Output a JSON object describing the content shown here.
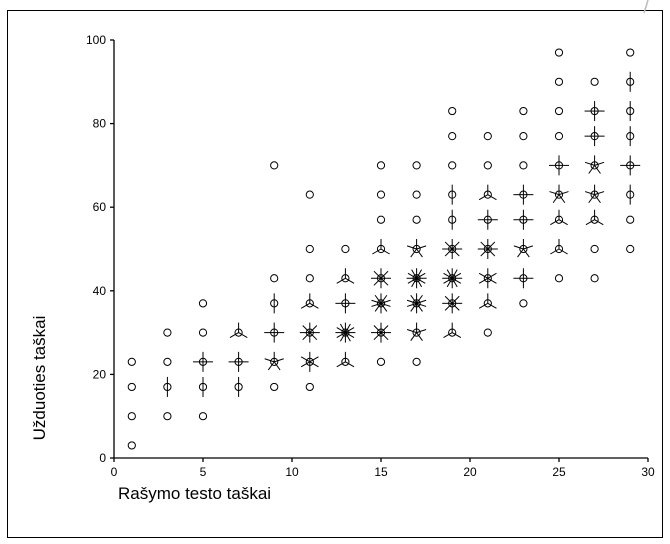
{
  "chart_data": {
    "type": "scatter",
    "title": "",
    "xlabel": "Rašymo testo taškai",
    "ylabel": "Užduoties taškai",
    "xlim": [
      0,
      30
    ],
    "ylim": [
      0,
      100
    ],
    "xticks": [
      0,
      5,
      10,
      15,
      20,
      25,
      30
    ],
    "yticks": [
      0,
      20,
      40,
      60,
      80,
      100
    ],
    "grid": false,
    "legend": "none",
    "marker": "sunflower",
    "color": "#000000",
    "points": [
      {
        "x": 1,
        "y": 3,
        "n": 1
      },
      {
        "x": 1,
        "y": 10,
        "n": 1
      },
      {
        "x": 1,
        "y": 17,
        "n": 1
      },
      {
        "x": 1,
        "y": 23,
        "n": 1
      },
      {
        "x": 3,
        "y": 10,
        "n": 1
      },
      {
        "x": 3,
        "y": 17,
        "n": 2
      },
      {
        "x": 3,
        "y": 23,
        "n": 1
      },
      {
        "x": 3,
        "y": 30,
        "n": 1
      },
      {
        "x": 5,
        "y": 10,
        "n": 1
      },
      {
        "x": 5,
        "y": 17,
        "n": 2
      },
      {
        "x": 5,
        "y": 23,
        "n": 4
      },
      {
        "x": 5,
        "y": 30,
        "n": 1
      },
      {
        "x": 5,
        "y": 37,
        "n": 1
      },
      {
        "x": 7,
        "y": 17,
        "n": 2
      },
      {
        "x": 7,
        "y": 23,
        "n": 4
      },
      {
        "x": 7,
        "y": 30,
        "n": 3
      },
      {
        "x": 9,
        "y": 17,
        "n": 1
      },
      {
        "x": 9,
        "y": 23,
        "n": 5
      },
      {
        "x": 9,
        "y": 30,
        "n": 4
      },
      {
        "x": 9,
        "y": 37,
        "n": 2
      },
      {
        "x": 9,
        "y": 43,
        "n": 1
      },
      {
        "x": 9,
        "y": 70,
        "n": 1
      },
      {
        "x": 11,
        "y": 17,
        "n": 1
      },
      {
        "x": 11,
        "y": 23,
        "n": 6
      },
      {
        "x": 11,
        "y": 30,
        "n": 8
      },
      {
        "x": 11,
        "y": 37,
        "n": 3
      },
      {
        "x": 11,
        "y": 43,
        "n": 1
      },
      {
        "x": 11,
        "y": 50,
        "n": 1
      },
      {
        "x": 11,
        "y": 63,
        "n": 1
      },
      {
        "x": 13,
        "y": 23,
        "n": 3
      },
      {
        "x": 13,
        "y": 30,
        "n": 12
      },
      {
        "x": 13,
        "y": 37,
        "n": 4
      },
      {
        "x": 13,
        "y": 43,
        "n": 3
      },
      {
        "x": 13,
        "y": 50,
        "n": 1
      },
      {
        "x": 15,
        "y": 23,
        "n": 1
      },
      {
        "x": 15,
        "y": 30,
        "n": 8
      },
      {
        "x": 15,
        "y": 37,
        "n": 10
      },
      {
        "x": 15,
        "y": 43,
        "n": 8
      },
      {
        "x": 15,
        "y": 50,
        "n": 3
      },
      {
        "x": 15,
        "y": 57,
        "n": 1
      },
      {
        "x": 15,
        "y": 63,
        "n": 1
      },
      {
        "x": 15,
        "y": 70,
        "n": 1
      },
      {
        "x": 17,
        "y": 23,
        "n": 1
      },
      {
        "x": 17,
        "y": 30,
        "n": 5
      },
      {
        "x": 17,
        "y": 37,
        "n": 10
      },
      {
        "x": 17,
        "y": 43,
        "n": 12
      },
      {
        "x": 17,
        "y": 50,
        "n": 5
      },
      {
        "x": 17,
        "y": 57,
        "n": 1
      },
      {
        "x": 17,
        "y": 63,
        "n": 1
      },
      {
        "x": 17,
        "y": 70,
        "n": 1
      },
      {
        "x": 19,
        "y": 30,
        "n": 3
      },
      {
        "x": 19,
        "y": 37,
        "n": 8
      },
      {
        "x": 19,
        "y": 43,
        "n": 12
      },
      {
        "x": 19,
        "y": 50,
        "n": 8
      },
      {
        "x": 19,
        "y": 57,
        "n": 2
      },
      {
        "x": 19,
        "y": 63,
        "n": 2
      },
      {
        "x": 19,
        "y": 70,
        "n": 1
      },
      {
        "x": 19,
        "y": 77,
        "n": 1
      },
      {
        "x": 19,
        "y": 83,
        "n": 1
      },
      {
        "x": 21,
        "y": 30,
        "n": 1
      },
      {
        "x": 21,
        "y": 37,
        "n": 3
      },
      {
        "x": 21,
        "y": 43,
        "n": 6
      },
      {
        "x": 21,
        "y": 50,
        "n": 8
      },
      {
        "x": 21,
        "y": 57,
        "n": 4
      },
      {
        "x": 21,
        "y": 63,
        "n": 3
      },
      {
        "x": 21,
        "y": 70,
        "n": 1
      },
      {
        "x": 21,
        "y": 77,
        "n": 1
      },
      {
        "x": 23,
        "y": 37,
        "n": 1
      },
      {
        "x": 23,
        "y": 43,
        "n": 4
      },
      {
        "x": 23,
        "y": 50,
        "n": 5
      },
      {
        "x": 23,
        "y": 57,
        "n": 4
      },
      {
        "x": 23,
        "y": 63,
        "n": 4
      },
      {
        "x": 23,
        "y": 70,
        "n": 1
      },
      {
        "x": 23,
        "y": 77,
        "n": 1
      },
      {
        "x": 23,
        "y": 83,
        "n": 1
      },
      {
        "x": 25,
        "y": 43,
        "n": 1
      },
      {
        "x": 25,
        "y": 50,
        "n": 3
      },
      {
        "x": 25,
        "y": 57,
        "n": 3
      },
      {
        "x": 25,
        "y": 63,
        "n": 5
      },
      {
        "x": 25,
        "y": 70,
        "n": 4
      },
      {
        "x": 25,
        "y": 77,
        "n": 1
      },
      {
        "x": 25,
        "y": 83,
        "n": 1
      },
      {
        "x": 25,
        "y": 90,
        "n": 1
      },
      {
        "x": 25,
        "y": 97,
        "n": 1
      },
      {
        "x": 27,
        "y": 43,
        "n": 1
      },
      {
        "x": 27,
        "y": 50,
        "n": 1
      },
      {
        "x": 27,
        "y": 57,
        "n": 3
      },
      {
        "x": 27,
        "y": 63,
        "n": 5
      },
      {
        "x": 27,
        "y": 70,
        "n": 5
      },
      {
        "x": 27,
        "y": 77,
        "n": 4
      },
      {
        "x": 27,
        "y": 83,
        "n": 4
      },
      {
        "x": 27,
        "y": 90,
        "n": 1
      },
      {
        "x": 29,
        "y": 50,
        "n": 1
      },
      {
        "x": 29,
        "y": 57,
        "n": 1
      },
      {
        "x": 29,
        "y": 63,
        "n": 2
      },
      {
        "x": 29,
        "y": 70,
        "n": 4
      },
      {
        "x": 29,
        "y": 77,
        "n": 2
      },
      {
        "x": 29,
        "y": 83,
        "n": 2
      },
      {
        "x": 29,
        "y": 90,
        "n": 2
      },
      {
        "x": 29,
        "y": 97,
        "n": 1
      }
    ]
  }
}
